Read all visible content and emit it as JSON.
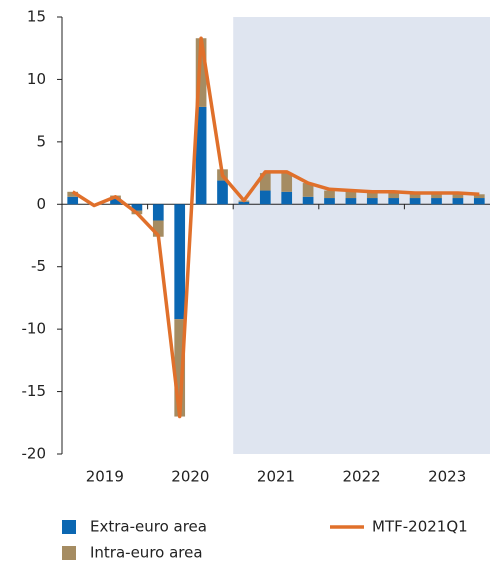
{
  "chart_data": {
    "type": "stacked_bar_line",
    "categories": [
      null,
      null,
      null,
      null,
      null,
      null,
      null,
      null,
      null,
      null,
      null,
      null,
      null,
      null,
      null,
      null,
      null,
      null,
      null,
      null
    ],
    "year_labels": [
      "2019",
      "2020",
      "2021",
      "2022",
      "2023"
    ],
    "series": [
      {
        "name": "Extra-euro area",
        "color": "#0b67b2",
        "kind": "bar",
        "values": [
          0.6,
          0,
          0.5,
          -0.5,
          -1.3,
          -9.2,
          7.8,
          1.9,
          0.2,
          1.1,
          1.0,
          0.6,
          0.5,
          0.5,
          0.5,
          0.5,
          0.5,
          0.5,
          0.5,
          0.5
        ]
      },
      {
        "name": "Intra-euro area",
        "color": "#a58c62",
        "kind": "bar",
        "values": [
          0.4,
          0,
          0.2,
          -0.3,
          -1.3,
          -7.8,
          5.5,
          0.9,
          0.1,
          1.4,
          1.5,
          1.1,
          0.6,
          0.6,
          0.5,
          0.5,
          0.4,
          0.4,
          0.4,
          0.3
        ]
      },
      {
        "name": "MTF-2021Q1",
        "color": "#e0702b",
        "kind": "line",
        "values": [
          1.0,
          -0.1,
          0.6,
          -0.7,
          -2.5,
          -17.0,
          13.3,
          2.3,
          0.3,
          2.6,
          2.6,
          1.7,
          1.2,
          1.1,
          1.0,
          1.0,
          0.9,
          0.9,
          0.9,
          0.8
        ]
      }
    ],
    "ylim": [
      -20,
      15
    ],
    "yticks": [
      15,
      10,
      5,
      0,
      -5,
      -10,
      -15,
      -20
    ],
    "shade_from": 8,
    "shade_color": "#dfe5f0"
  }
}
